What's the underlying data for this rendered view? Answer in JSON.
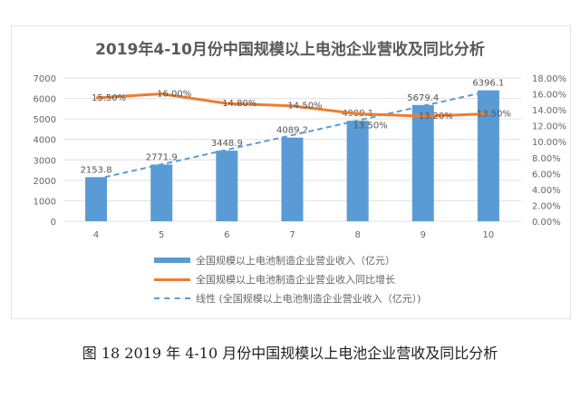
{
  "chart_data": {
    "type": "bar",
    "title": "2019年4-10月份中国规模以上电池企业营收及同比分析",
    "categories": [
      "4",
      "5",
      "6",
      "7",
      "8",
      "9",
      "10"
    ],
    "series": [
      {
        "name": "全国规模以上电池制造企业营业收入（亿元）",
        "type": "bar",
        "axis": "left",
        "color": "#5b9bd5",
        "values": [
          2153.8,
          2771.9,
          3448.9,
          4089.2,
          4909.1,
          5679.4,
          6396.1
        ],
        "labels": [
          "2153.8",
          "2771.9",
          "3448.9",
          "4089.2",
          "4909.1",
          "5679.4",
          "6396.1"
        ]
      },
      {
        "name": "全国规模以上电池制造企业营业收入同比增长",
        "type": "line",
        "axis": "right",
        "color": "#ed7d31",
        "values": [
          15.5,
          16.0,
          14.8,
          14.5,
          13.5,
          13.2,
          13.5
        ],
        "labels": [
          "15.50%",
          "16.00%",
          "14.80%",
          "14.50%",
          "13.50%",
          "13.20%",
          "13.50%"
        ]
      },
      {
        "name": "线性 (全国规模以上电池制造企业营业收入（亿元）)",
        "type": "trendline",
        "color": "#5b9bd5"
      }
    ],
    "y_left": {
      "range": [
        0,
        7000
      ],
      "ticks": [
        "0",
        "1000",
        "2000",
        "3000",
        "4000",
        "5000",
        "6000",
        "7000"
      ]
    },
    "y_right": {
      "range": [
        0,
        18
      ],
      "ticks": [
        "0.00%",
        "2.00%",
        "4.00%",
        "6.00%",
        "8.00%",
        "10.00%",
        "12.00%",
        "14.00%",
        "16.00%",
        "18.00%"
      ]
    },
    "grid": true,
    "legend": "bottom"
  },
  "caption": "图 18 2019 年 4-10 月份中国规模以上电池企业营收及同比分析"
}
